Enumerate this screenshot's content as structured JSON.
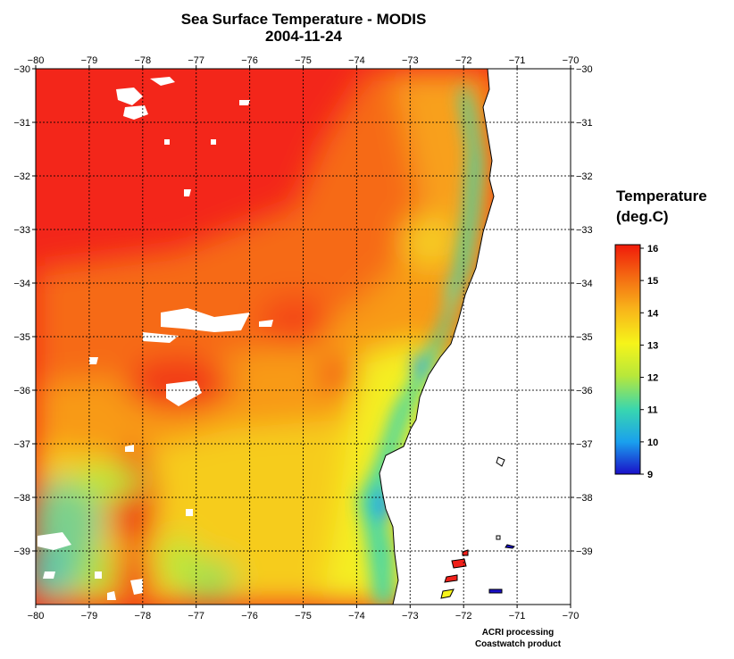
{
  "title": "Sea Surface Temperature - MODIS",
  "date": "2004-11-24",
  "legend": {
    "title_line1": "Temperature",
    "title_line2": "(deg.C)",
    "values": [
      "16",
      "15",
      "14",
      "13",
      "12",
      "11",
      "10",
      "9"
    ],
    "min": 9,
    "max": 16,
    "colors": [
      "#1a10c8",
      "#1aa0ee",
      "#38d6b0",
      "#b8e83a",
      "#f6f41a",
      "#f8b41a",
      "#f46a12",
      "#f01a0a"
    ]
  },
  "axes": {
    "lon_labels": [
      "−80",
      "−79",
      "−78",
      "−77",
      "−76",
      "−75",
      "−74",
      "−73",
      "−72",
      "−71",
      "−70"
    ],
    "lat_labels": [
      "−30",
      "−31",
      "−32",
      "−33",
      "−34",
      "−35",
      "−36",
      "−37",
      "−38",
      "−39"
    ],
    "lon_range": [
      -80,
      -70
    ],
    "lat_range": [
      -40,
      -30
    ],
    "grid": true
  },
  "credits": {
    "line1": "ACRI processing",
    "line2": "Coastwatch product"
  }
}
